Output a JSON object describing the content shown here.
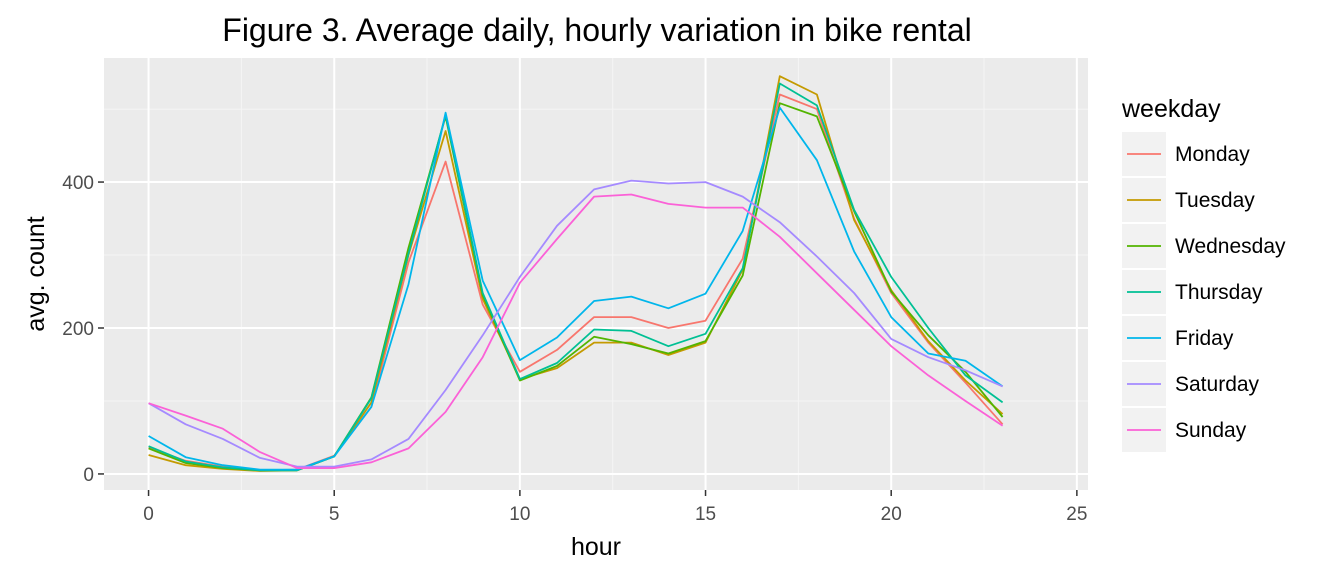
{
  "chart_data": {
    "type": "line",
    "title": "Figure 3. Average daily, hourly variation in bike rental",
    "xlabel": "hour",
    "ylabel": "avg. count",
    "xlim": [
      -1.2,
      25.3
    ],
    "ylim": [
      -22,
      570
    ],
    "x_ticks": [
      0,
      5,
      10,
      15,
      20,
      25
    ],
    "y_ticks": [
      0,
      200,
      400
    ],
    "grid": true,
    "legend": {
      "title": "weekday",
      "position": "right"
    },
    "x": [
      0,
      1,
      2,
      3,
      4,
      5,
      6,
      7,
      8,
      9,
      10,
      11,
      12,
      13,
      14,
      15,
      16,
      17,
      18,
      19,
      20,
      21,
      22,
      23
    ],
    "series": [
      {
        "name": "Monday",
        "color": "#F8766D",
        "values": [
          36,
          18,
          10,
          5,
          6,
          25,
          92,
          290,
          428,
          232,
          140,
          170,
          215,
          215,
          200,
          210,
          295,
          520,
          500,
          350,
          248,
          180,
          125,
          68
        ]
      },
      {
        "name": "Tuesday",
        "color": "#C49A00",
        "values": [
          26,
          12,
          7,
          4,
          5,
          24,
          98,
          300,
          470,
          240,
          130,
          145,
          180,
          180,
          163,
          180,
          280,
          545,
          520,
          348,
          252,
          182,
          128,
          82
        ]
      },
      {
        "name": "Wednesday",
        "color": "#53B400",
        "values": [
          35,
          15,
          8,
          5,
          5,
          24,
          105,
          310,
          490,
          245,
          128,
          148,
          188,
          178,
          165,
          182,
          272,
          508,
          490,
          360,
          250,
          190,
          140,
          78
        ]
      },
      {
        "name": "Thursday",
        "color": "#00C094",
        "values": [
          38,
          17,
          9,
          5,
          5,
          24,
          104,
          302,
          492,
          248,
          130,
          152,
          198,
          196,
          175,
          192,
          282,
          535,
          505,
          362,
          270,
          200,
          135,
          98
        ]
      },
      {
        "name": "Friday",
        "color": "#00B6EB",
        "values": [
          52,
          23,
          12,
          6,
          6,
          24,
          92,
          260,
          495,
          265,
          156,
          187,
          237,
          243,
          227,
          247,
          333,
          502,
          430,
          305,
          215,
          165,
          155,
          120
        ]
      },
      {
        "name": "Saturday",
        "color": "#A58AFF",
        "values": [
          97,
          68,
          48,
          22,
          10,
          10,
          20,
          48,
          115,
          190,
          270,
          340,
          390,
          402,
          398,
          400,
          380,
          345,
          298,
          248,
          185,
          160,
          142,
          120
        ]
      },
      {
        "name": "Sunday",
        "color": "#FB61D7",
        "values": [
          97,
          80,
          62,
          30,
          8,
          8,
          16,
          35,
          85,
          160,
          262,
          322,
          380,
          383,
          370,
          365,
          365,
          325,
          275,
          225,
          175,
          135,
          100,
          66
        ]
      }
    ]
  }
}
